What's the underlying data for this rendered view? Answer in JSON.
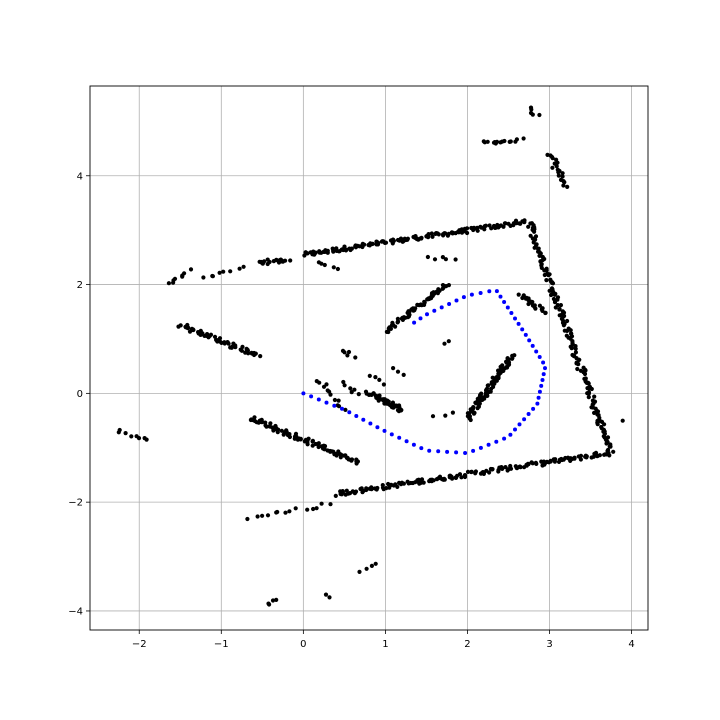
{
  "chart_data": {
    "type": "scatter",
    "title": "",
    "xlabel": "",
    "ylabel": "",
    "xlim": [
      -2.6,
      4.2
    ],
    "ylim": [
      -4.35,
      5.65
    ],
    "grid": true,
    "x_ticks": [
      {
        "value": -2,
        "label": "−2"
      },
      {
        "value": -1,
        "label": "−1"
      },
      {
        "value": 0,
        "label": "0"
      },
      {
        "value": 1,
        "label": "1"
      },
      {
        "value": 2,
        "label": "2"
      },
      {
        "value": 3,
        "label": "3"
      },
      {
        "value": 4,
        "label": "4"
      }
    ],
    "y_ticks": [
      {
        "value": -4,
        "label": "−4"
      },
      {
        "value": -2,
        "label": "−2"
      },
      {
        "value": 0,
        "label": "0"
      },
      {
        "value": 2,
        "label": "2"
      },
      {
        "value": 4,
        "label": "4"
      }
    ],
    "series": [
      {
        "color": "#000000",
        "segments": [
          {
            "from": [
              0.0,
              2.55
            ],
            "to": [
              2.7,
              3.15
            ],
            "n": 150
          },
          {
            "from": [
              -0.55,
              2.4
            ],
            "to": [
              -0.2,
              2.45
            ],
            "n": 20
          },
          {
            "from": [
              0.4,
              -1.85
            ],
            "to": [
              3.7,
              -1.1
            ],
            "n": 170
          },
          {
            "from": [
              2.75,
              3.15
            ],
            "to": [
              3.75,
              -1.1
            ],
            "n": 170
          },
          {
            "from": [
              2.65,
              1.8
            ],
            "to": [
              2.95,
              1.5
            ],
            "n": 25
          },
          {
            "from": [
              -1.5,
              1.25
            ],
            "to": [
              -0.55,
              0.7
            ],
            "n": 60
          },
          {
            "from": [
              -0.65,
              -0.45
            ],
            "to": [
              0.65,
              -1.25
            ],
            "n": 90
          },
          {
            "from": [
              1.0,
              1.15
            ],
            "to": [
              1.75,
              2.0
            ],
            "n": 60
          },
          {
            "from": [
              2.0,
              -0.45
            ],
            "to": [
              2.55,
              0.7
            ],
            "n": 90
          },
          {
            "from": [
              0.8,
              0.0
            ],
            "to": [
              1.2,
              -0.3
            ],
            "n": 45
          },
          {
            "from": [
              2.2,
              4.6
            ],
            "to": [
              2.65,
              4.65
            ],
            "n": 15
          },
          {
            "from": [
              3.0,
              4.4
            ],
            "to": [
              3.2,
              3.8
            ],
            "n": 20
          },
          {
            "from": [
              2.75,
              5.25
            ],
            "to": [
              2.85,
              5.1
            ],
            "n": 5
          },
          {
            "from": [
              -1.65,
              2.0
            ],
            "to": [
              -1.4,
              2.25
            ],
            "n": 8
          },
          {
            "from": [
              -1.2,
              2.1
            ],
            "to": [
              -0.75,
              2.3
            ],
            "n": 8
          },
          {
            "from": [
              -2.25,
              -0.68
            ],
            "to": [
              -1.9,
              -0.85
            ],
            "n": 8
          },
          {
            "from": [
              -0.65,
              -2.28
            ],
            "to": [
              0.3,
              -2.05
            ],
            "n": 14
          },
          {
            "from": [
              0.5,
              0.8
            ],
            "to": [
              0.6,
              0.65
            ],
            "n": 5
          },
          {
            "from": [
              0.2,
              0.25
            ],
            "to": [
              0.5,
              -0.3
            ],
            "n": 12
          },
          {
            "from": [
              0.5,
              0.2
            ],
            "to": [
              0.65,
              -0.05
            ],
            "n": 6
          },
          {
            "from": [
              0.85,
              0.35
            ],
            "to": [
              0.95,
              0.15
            ],
            "n": 4
          },
          {
            "from": [
              1.1,
              0.45
            ],
            "to": [
              1.2,
              0.35
            ],
            "n": 3
          },
          {
            "from": [
              1.5,
              2.5
            ],
            "to": [
              1.85,
              2.45
            ],
            "n": 5
          },
          {
            "from": [
              0.2,
              2.4
            ],
            "to": [
              0.4,
              2.3
            ],
            "n": 5
          },
          {
            "from": [
              0.7,
              -3.25
            ],
            "to": [
              0.9,
              -3.1
            ],
            "n": 4
          },
          {
            "from": [
              -0.45,
              -3.85
            ],
            "to": [
              -0.3,
              -3.8
            ],
            "n": 4
          },
          {
            "from": [
              0.25,
              -3.7
            ],
            "to": [
              0.35,
              -3.72
            ],
            "n": 2
          },
          {
            "from": [
              1.6,
              -0.4
            ],
            "to": [
              1.8,
              -0.35
            ],
            "n": 3
          },
          {
            "from": [
              1.7,
              0.95
            ],
            "to": [
              1.8,
              0.95
            ],
            "n": 2
          },
          {
            "from": [
              3.9,
              -0.5
            ],
            "to": [
              3.92,
              -0.5
            ],
            "n": 1
          }
        ]
      },
      {
        "color": "#0000ff",
        "path": [
          [
            0.0,
            0.0
          ],
          [
            0.5,
            -0.3
          ],
          [
            1.0,
            -0.7
          ],
          [
            1.5,
            -1.05
          ],
          [
            2.0,
            -1.1
          ],
          [
            2.5,
            -0.8
          ],
          [
            2.85,
            -0.2
          ],
          [
            2.95,
            0.5
          ],
          [
            2.7,
            1.1
          ],
          [
            2.35,
            1.9
          ],
          [
            2.0,
            1.8
          ],
          [
            1.5,
            1.45
          ],
          [
            1.35,
            1.3
          ]
        ],
        "n": 65
      }
    ]
  }
}
